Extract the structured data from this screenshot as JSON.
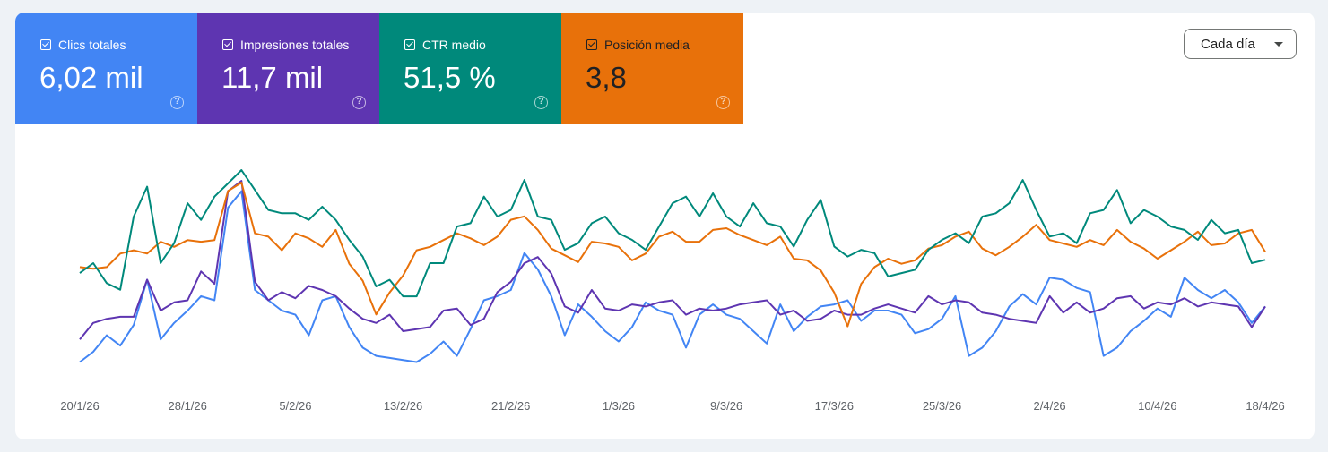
{
  "tiles": [
    {
      "label": "Clics totales",
      "value": "6,02 mil",
      "color": "#4285f4",
      "checked": true
    },
    {
      "label": "Impresiones totales",
      "value": "11,7 mil",
      "color": "#5e35b1",
      "checked": true
    },
    {
      "label": "CTR medio",
      "value": "51,5 %",
      "color": "#00897b",
      "checked": true
    },
    {
      "label": "Posición media",
      "value": "3,8",
      "color": "#e8710a",
      "checked": true
    }
  ],
  "help_glyph": "?",
  "dropdown": {
    "label": "Cada día"
  },
  "chart_data": {
    "type": "line",
    "x_ticks": [
      "20/1/26",
      "28/1/26",
      "5/2/26",
      "13/2/26",
      "21/2/26",
      "1/3/26",
      "9/3/26",
      "17/3/26",
      "25/3/26",
      "2/4/26",
      "10/4/26",
      "18/4/26"
    ],
    "x_start": "2026-01-20",
    "days": 89,
    "grid": false,
    "legend": "metric tiles above chart",
    "series": [
      {
        "name": "Clics totales",
        "color": "#4285f4",
        "values": [
          5,
          10,
          18,
          13,
          23,
          45,
          16,
          24,
          30,
          37,
          35,
          80,
          88,
          40,
          35,
          30,
          28,
          18,
          35,
          37,
          22,
          12,
          8,
          7,
          6,
          5,
          9,
          15,
          8,
          21,
          35,
          37,
          40,
          58,
          50,
          37,
          18,
          33,
          27,
          20,
          15,
          22,
          34,
          30,
          28,
          12,
          28,
          33,
          28,
          26,
          20,
          14,
          33,
          20,
          27,
          32,
          33,
          35,
          25,
          30,
          30,
          28,
          19,
          21,
          26,
          37,
          8,
          12,
          20,
          32,
          38,
          33,
          46,
          45,
          41,
          39,
          8,
          12,
          20,
          25,
          31,
          27,
          46,
          40,
          36,
          40,
          34,
          24,
          32
        ]
      },
      {
        "name": "Impresiones totales",
        "color": "#5e35b1",
        "values": [
          16,
          24,
          26,
          27,
          27,
          45,
          30,
          34,
          35,
          49,
          43,
          88,
          93,
          44,
          35,
          39,
          36,
          42,
          40,
          37,
          31,
          26,
          24,
          28,
          20,
          21,
          22,
          30,
          31,
          23,
          26,
          39,
          44,
          53,
          56,
          48,
          32,
          29,
          40,
          31,
          30,
          33,
          32,
          34,
          35,
          28,
          31,
          30,
          31,
          33,
          34,
          35,
          28,
          30,
          25,
          26,
          30,
          28,
          28,
          31,
          33,
          31,
          29,
          37,
          33,
          35,
          34,
          29,
          28,
          26,
          25,
          24,
          37,
          29,
          34,
          29,
          31,
          36,
          37,
          31,
          34,
          33,
          36,
          32,
          34,
          33,
          32,
          22,
          32
        ]
      },
      {
        "name": "CTR medio",
        "color": "#00897b",
        "values": [
          31,
          34,
          28,
          26,
          48,
          57,
          34,
          40,
          52,
          47,
          54,
          58,
          62,
          56,
          50,
          49,
          49,
          47,
          51,
          47,
          41,
          36,
          27,
          29,
          24,
          24,
          34,
          34,
          45,
          46,
          54,
          48,
          50,
          59,
          48,
          47,
          38,
          40,
          46,
          48,
          43,
          41,
          38,
          45,
          52,
          54,
          48,
          55,
          48,
          45,
          52,
          46,
          45,
          39,
          47,
          53,
          39,
          36,
          38,
          37,
          30,
          31,
          32,
          38,
          41,
          43,
          40,
          48,
          49,
          52,
          59,
          50,
          42,
          43,
          40,
          49,
          50,
          56,
          46,
          50,
          48,
          45,
          44,
          41,
          47,
          43,
          44,
          34,
          35
        ]
      },
      {
        "name": "Posición media",
        "color": "#e8710a",
        "values": [
          4,
          3.9,
          4,
          4.8,
          5,
          4.8,
          5.5,
          5.2,
          5.6,
          5.5,
          5.6,
          8.5,
          9,
          6,
          5.8,
          5,
          6,
          5.7,
          5.2,
          6.2,
          4.2,
          3.2,
          1.2,
          2.5,
          3.5,
          5,
          5.2,
          5.6,
          6,
          5.7,
          5.3,
          5.8,
          6.8,
          7,
          6.2,
          5.1,
          4.7,
          4.3,
          5.5,
          5.4,
          5.2,
          4.4,
          4.8,
          5.8,
          6.1,
          5.5,
          5.5,
          6.2,
          6.3,
          5.9,
          5.6,
          5.3,
          5.8,
          4.5,
          4.4,
          3.8,
          2.5,
          0.5,
          3,
          4,
          4.5,
          4.2,
          4.4,
          5.1,
          5.3,
          5.8,
          6.1,
          5.1,
          4.7,
          5.2,
          5.8,
          6.5,
          5.6,
          5.4,
          5.2,
          5.6,
          5.3,
          6.2,
          5.5,
          5.1,
          4.5,
          5.0,
          5.5,
          6.1,
          5.3,
          5.4,
          6.0,
          6.2,
          4.9
        ]
      }
    ]
  }
}
